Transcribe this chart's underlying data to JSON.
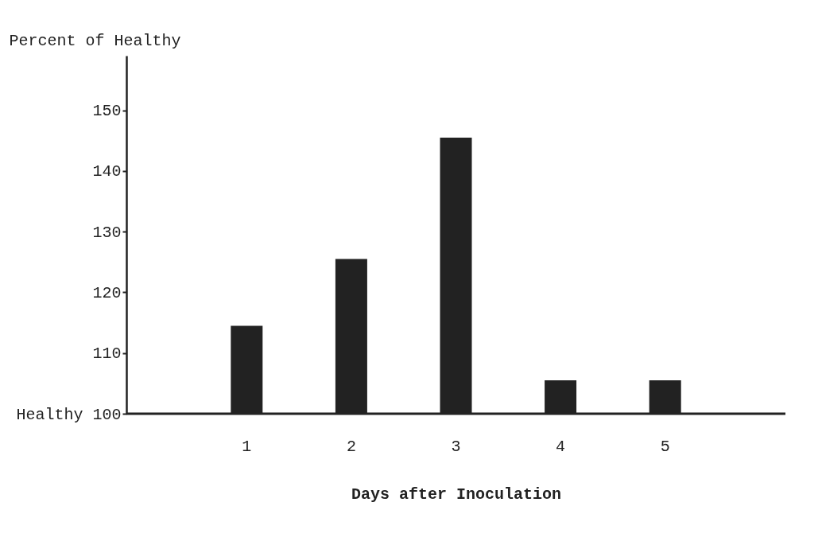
{
  "chart_data": {
    "type": "bar",
    "ylabel": "Percent of Healthy",
    "xlabel": "Days after Inoculation",
    "categories": [
      "1",
      "2",
      "3",
      "4",
      "5"
    ],
    "values": [
      114.5,
      125.5,
      145.5,
      105.5,
      105.5
    ],
    "color": "#222222",
    "ylim": [
      100,
      159
    ],
    "yticks": [
      {
        "value": 100,
        "label": "Healthy 100"
      },
      110,
      120,
      130,
      140,
      150
    ],
    "grid": false
  }
}
